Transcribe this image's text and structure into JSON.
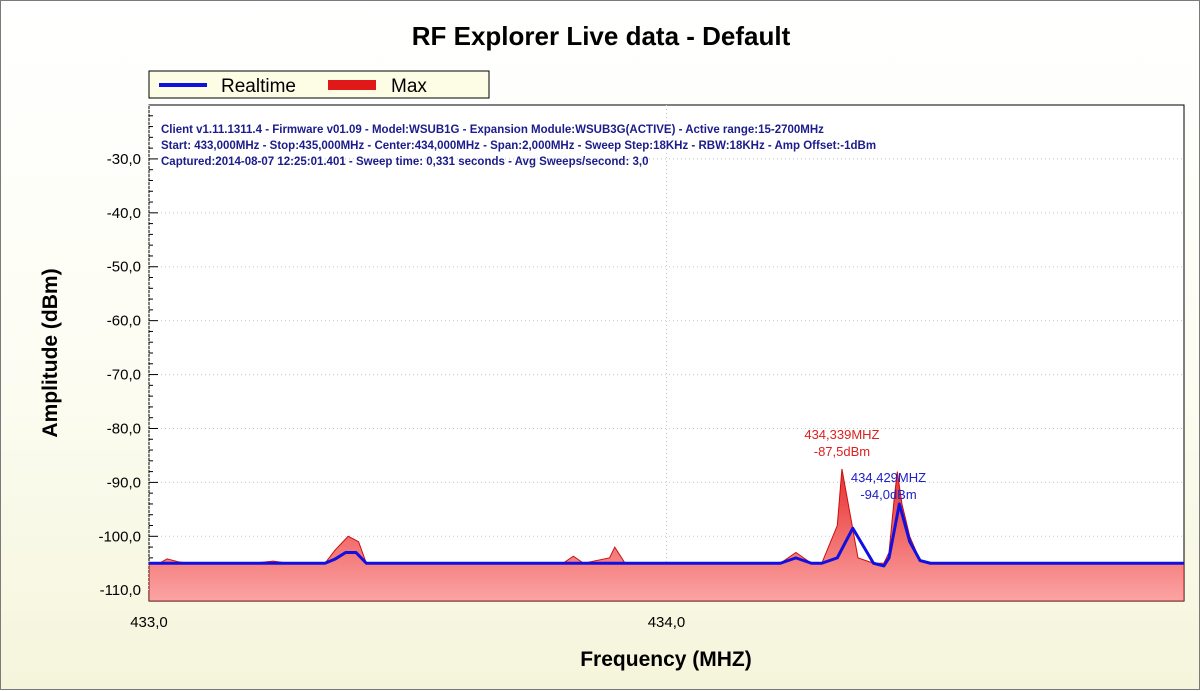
{
  "chart_data": {
    "type": "area",
    "title": "RF Explorer Live data - Default",
    "xlabel": "Frequency (MHZ)",
    "ylabel": "Amplitude (dBm)",
    "xlim": [
      433.0,
      435.0
    ],
    "ylim": [
      -112,
      -20
    ],
    "x_ticks": [
      433.0,
      434.0
    ],
    "x_tick_labels": [
      "433,0",
      "434,0"
    ],
    "y_ticks": [
      -30,
      -40,
      -50,
      -60,
      -70,
      -80,
      -90,
      -100,
      -110
    ],
    "y_tick_labels": [
      "-30,0",
      "-40,0",
      "-50,0",
      "-60,0",
      "-70,0",
      "-80,0",
      "-90,0",
      "-100,0",
      "-110,0"
    ],
    "grid": true,
    "legend_position": "top-left",
    "info_lines": [
      "Client v1.11.1311.4 - Firmware v01.09 - Model:WSUB1G - Expansion Module:WSUB3G(ACTIVE) - Active range:15-2700MHz",
      "Start: 433,000MHz - Stop:435,000MHz - Center:434,000MHz - Span:2,000MHz - Sweep Step:18KHz - RBW:18KHz - Amp Offset:-1dBm",
      "Captured:2014-08-07 12:25:01.401 - Sweep time: 0,331 seconds - Avg Sweeps/second: 3,0"
    ],
    "series": [
      {
        "name": "Realtime",
        "color": "#1010e0",
        "style": "line",
        "x": [
          433.0,
          433.34,
          433.36,
          433.38,
          433.4,
          433.42,
          434.18,
          434.22,
          434.25,
          434.28,
          434.3,
          434.33,
          434.36,
          434.4,
          434.42,
          434.43,
          434.45,
          434.47,
          434.49,
          434.51,
          435.0
        ],
        "values": [
          -105,
          -105,
          -104.2,
          -103,
          -103,
          -105,
          -105,
          -105,
          -104,
          -105,
          -105,
          -104,
          -98.5,
          -105,
          -105.5,
          -104,
          -94,
          -101,
          -104.5,
          -105,
          -105
        ]
      },
      {
        "name": "Max",
        "color": "#e01010",
        "style": "area",
        "x": [
          433.0,
          433.02,
          433.035,
          433.06,
          433.08,
          433.2,
          433.24,
          433.27,
          433.34,
          433.36,
          433.385,
          433.405,
          433.42,
          433.8,
          433.82,
          433.84,
          433.89,
          433.9,
          433.92,
          434.22,
          434.25,
          434.28,
          434.3,
          434.33,
          434.339,
          434.355,
          434.37,
          434.4,
          434.42,
          434.43,
          434.44,
          434.446,
          434.455,
          434.47,
          434.49,
          434.51,
          435.0
        ],
        "values": [
          -105,
          -105,
          -104.2,
          -104.8,
          -105,
          -105,
          -104.6,
          -105,
          -105,
          -102.5,
          -100,
          -101,
          -105,
          -105,
          -103.7,
          -105,
          -104,
          -102,
          -105,
          -105,
          -103,
          -105,
          -105,
          -98,
          -87.5,
          -96,
          -104,
          -105,
          -105,
          -103,
          -93,
          -88,
          -94,
          -100,
          -104.5,
          -105,
          -105
        ]
      }
    ],
    "annotations": [
      {
        "freq_label": "434,339MHZ",
        "amp_label": "-87,5dBm",
        "x": 434.339,
        "y": -87.5,
        "color": "#dd1f1f"
      },
      {
        "freq_label": "434,429MHZ",
        "amp_label": "-94,0dBm",
        "x": 434.429,
        "y": -94.0,
        "color": "#2020c8"
      }
    ]
  }
}
